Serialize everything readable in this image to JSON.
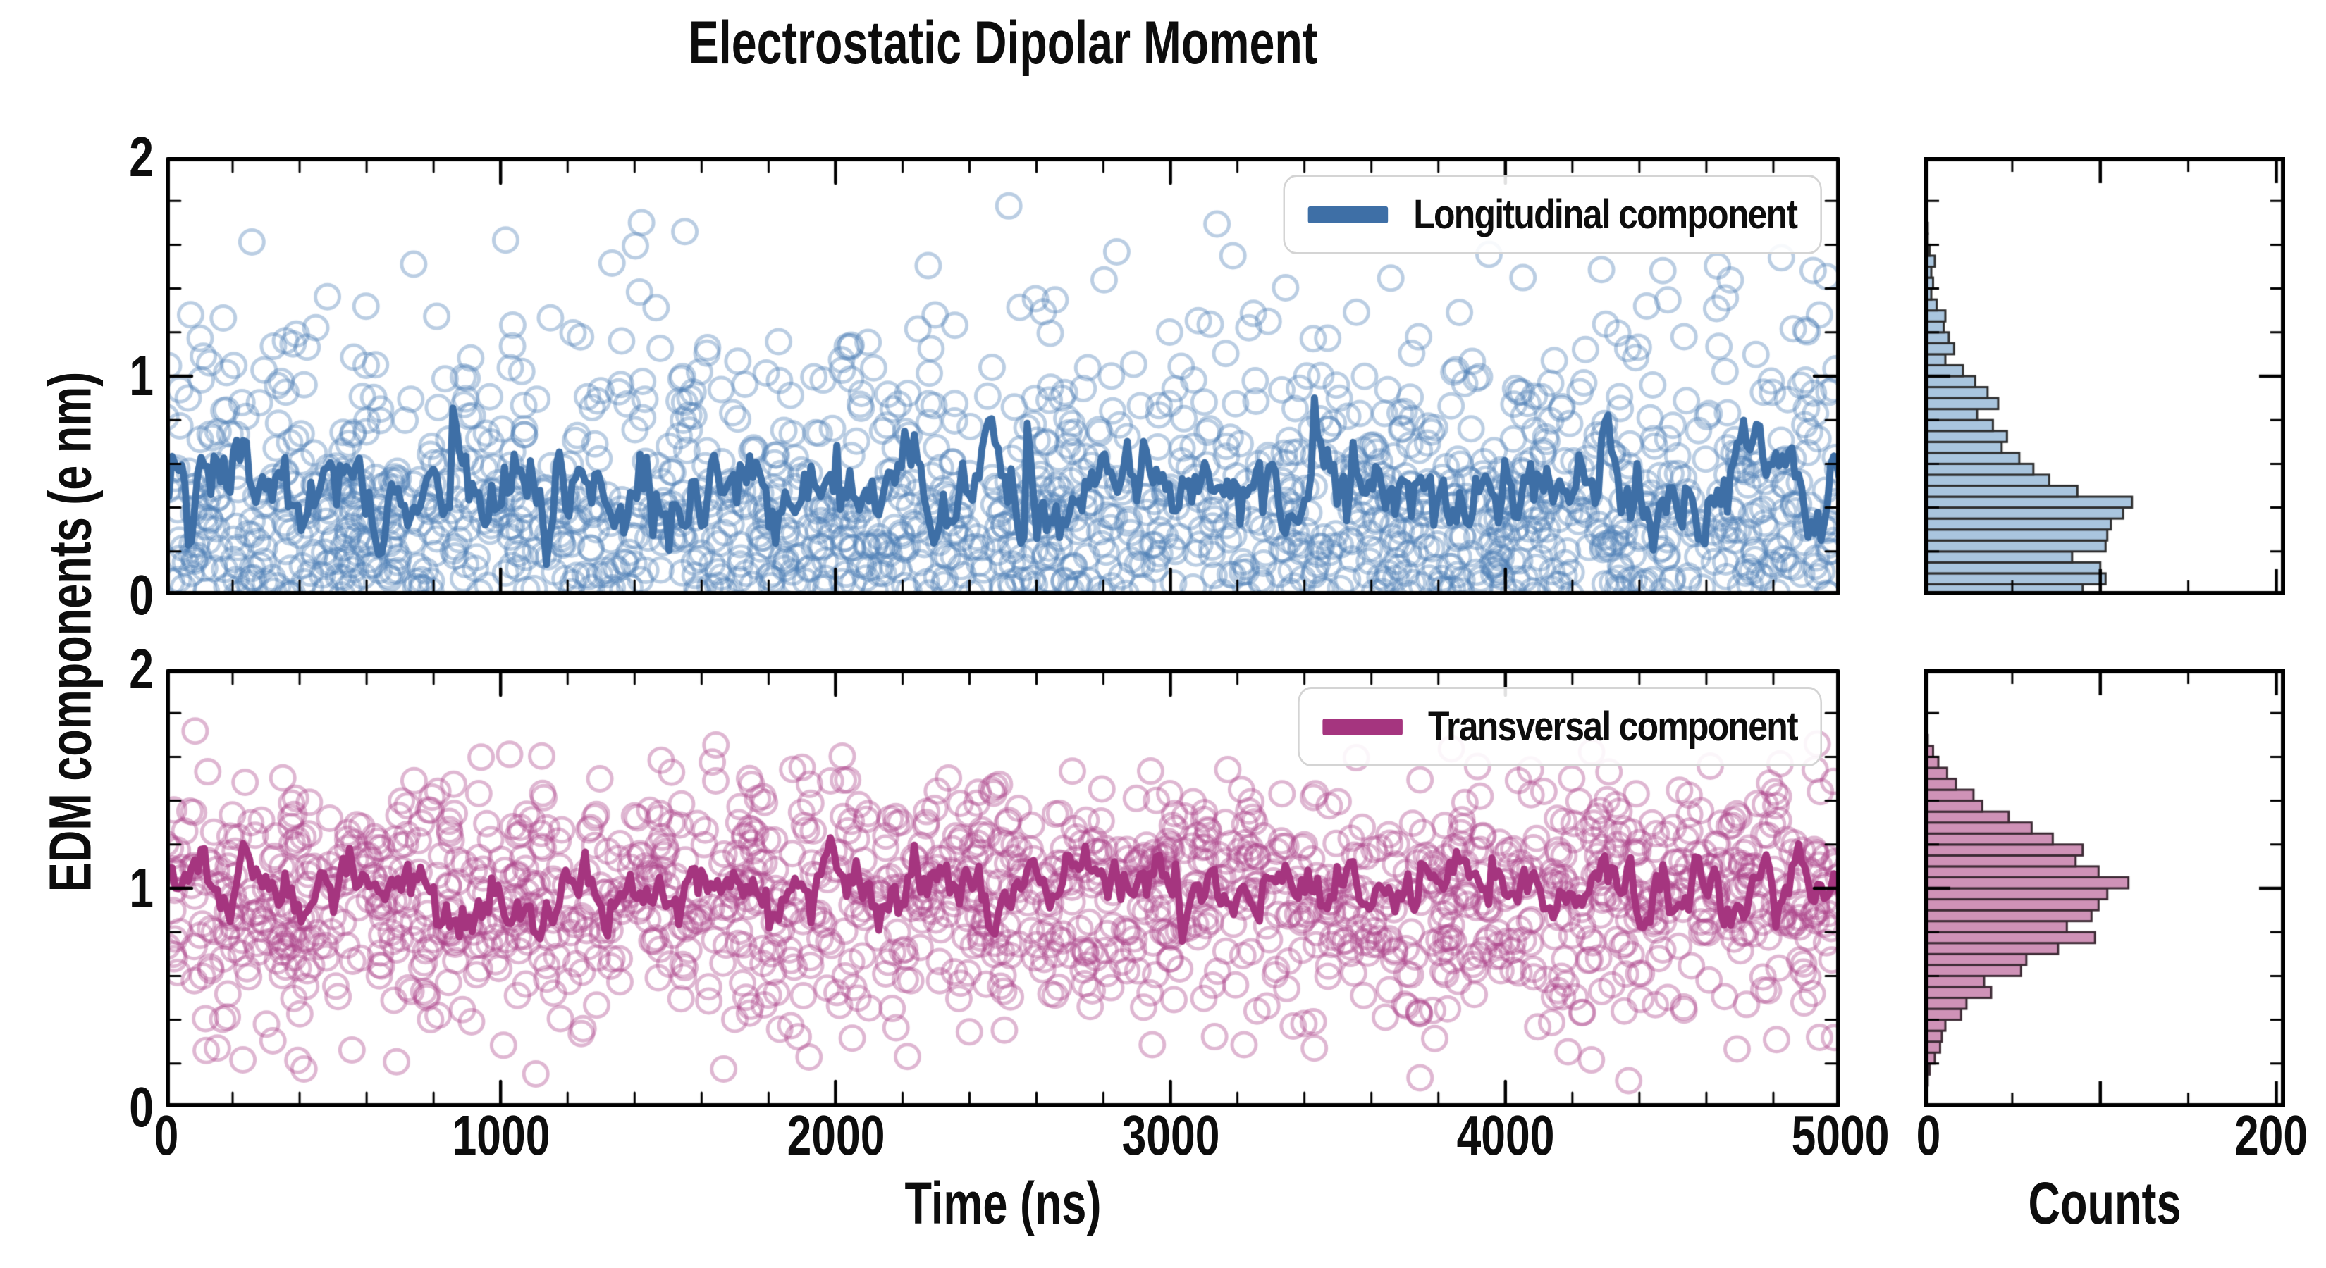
{
  "title": "Electrostatic Dipolar Moment",
  "ylabel": "EDM components (e nm)",
  "xlabel": "Time (ns)",
  "counts_label": "Counts",
  "axes": {
    "x_tick_labels": [
      "0",
      "1000",
      "2000",
      "3000",
      "4000",
      "5000"
    ],
    "y_tick_labels": [
      "2",
      "1",
      "0"
    ],
    "hist_x_tick_labels": [
      "0",
      "200"
    ]
  },
  "legend": {
    "top": "Longitudinal component",
    "bottom": "Transversal component"
  },
  "chart_data": [
    {
      "type": "scatter",
      "panel": "top",
      "name": "Longitudinal component",
      "xlim": [
        0,
        5000
      ],
      "ylim": [
        0,
        2
      ],
      "xticks": [
        0,
        1000,
        2000,
        3000,
        4000,
        5000
      ],
      "minor_x_step": 200,
      "yticks": [
        0,
        1,
        2
      ],
      "minor_y_step": 0.2,
      "line_color": "#3e6fa6",
      "scatter_color": "#4d7fb5",
      "scatter_alpha": 0.38,
      "hist_fill": "#a9c5de",
      "hist_edge": "#2f2f2f",
      "hist_xlim": [
        0,
        205
      ],
      "hist_xticks": [
        0,
        100,
        200
      ],
      "hist_minor_x_step": 50,
      "histogram": {
        "bin_start": 0.0,
        "bin_width": 0.05,
        "counts": [
          90,
          103,
          100,
          84,
          103,
          104,
          106,
          113,
          118,
          87,
          71,
          62,
          54,
          44,
          47,
          39,
          30,
          42,
          36,
          29,
          22,
          12,
          17,
          14,
          11,
          12,
          7,
          4,
          5,
          4,
          6,
          3,
          2,
          2,
          1,
          1
        ]
      },
      "line": {
        "mean": 0.46,
        "sd": 0.085,
        "revert": 0.32,
        "min": 0.14,
        "max": 0.96,
        "n": 520,
        "seed": 1234,
        "spike_every": 89,
        "spike_amp": 0.33
      },
      "scatter_seed": 99
    },
    {
      "type": "scatter",
      "panel": "bottom",
      "name": "Transversal component",
      "xlim": [
        0,
        5000
      ],
      "ylim": [
        0,
        2
      ],
      "xticks": [
        0,
        1000,
        2000,
        3000,
        4000,
        5000
      ],
      "minor_x_step": 200,
      "yticks": [
        0,
        1,
        2
      ],
      "minor_y_step": 0.2,
      "line_color": "#a5357f",
      "scatter_color": "#ab4389",
      "scatter_alpha": 0.38,
      "hist_fill": "#cf92b7",
      "hist_edge": "#3d2b35",
      "hist_xlim": [
        0,
        205
      ],
      "hist_xticks": [
        0,
        100,
        200
      ],
      "hist_minor_x_step": 50,
      "histogram": {
        "bin_start": 0.1,
        "bin_width": 0.05,
        "counts": [
          2,
          3,
          6,
          9,
          10,
          12,
          21,
          24,
          38,
          34,
          55,
          58,
          76,
          97,
          81,
          95,
          99,
          104,
          116,
          99,
          86,
          90,
          73,
          61,
          48,
          33,
          28,
          18,
          13,
          8,
          5,
          2,
          1
        ]
      },
      "line": {
        "mean": 1.0,
        "sd": 0.062,
        "revert": 0.3,
        "min": 0.72,
        "max": 1.32,
        "n": 520,
        "seed": 777,
        "spike_every": 0,
        "spike_amp": 0
      },
      "scatter_seed": 55
    }
  ]
}
